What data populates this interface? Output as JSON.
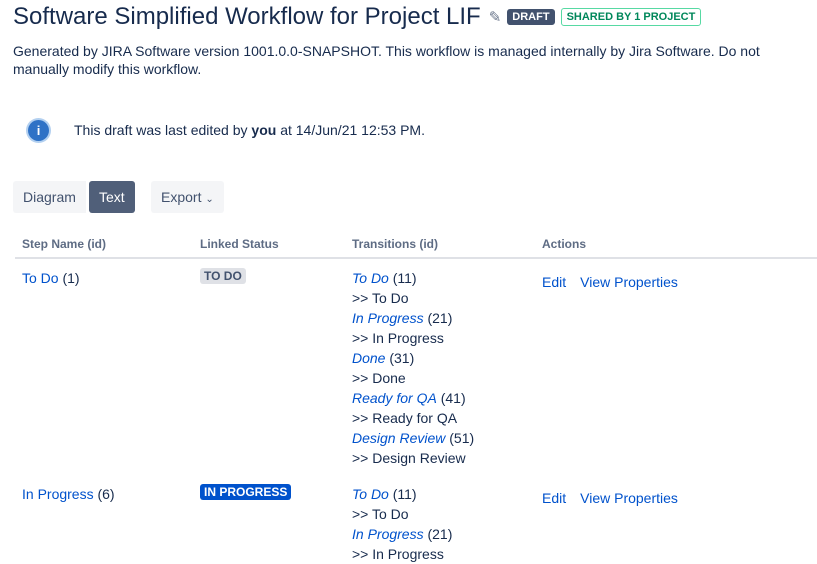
{
  "header": {
    "title": "Software Simplified Workflow for Project LIF",
    "draft_badge": "DRAFT",
    "shared_badge": "SHARED BY 1 PROJECT",
    "description": "Generated by JIRA Software version 1001.0.0-SNAPSHOT. This workflow is managed internally by Jira Software. Do not manually modify this workflow."
  },
  "notice": {
    "prefix": "This draft was last edited by ",
    "user": "you",
    "suffix": " at 14/Jun/21 12:53 PM."
  },
  "view": {
    "diagram": "Diagram",
    "text": "Text",
    "export": "Export",
    "selected": "Text"
  },
  "table": {
    "headers": [
      "Step Name (id)",
      "Linked Status",
      "Transitions (id)",
      "Actions"
    ],
    "rows": [
      {
        "step": "To Do",
        "id": "(1)",
        "status": "TO DO",
        "status_bg": "#dfe1e6",
        "status_fg": "#42526e",
        "transitions": [
          {
            "name": "To Do",
            "id": "(11)",
            "target": ">> To Do"
          },
          {
            "name": "In Progress",
            "id": "(21)",
            "target": ">> In Progress"
          },
          {
            "name": "Done",
            "id": "(31)",
            "target": ">> Done"
          },
          {
            "name": "Ready for QA",
            "id": "(41)",
            "target": ">> Ready for QA"
          },
          {
            "name": "Design Review",
            "id": "(51)",
            "target": ">> Design Review"
          }
        ],
        "actions": [
          "Edit",
          "View Properties"
        ]
      },
      {
        "step": "In Progress",
        "id": "(6)",
        "status": "IN PROGRESS",
        "status_bg": "#0052cc",
        "status_fg": "#ffffff",
        "transitions": [
          {
            "name": "To Do",
            "id": "(11)",
            "target": ">> To Do"
          },
          {
            "name": "In Progress",
            "id": "(21)",
            "target": ">> In Progress"
          }
        ],
        "actions": [
          "Edit",
          "View Properties"
        ]
      }
    ]
  }
}
